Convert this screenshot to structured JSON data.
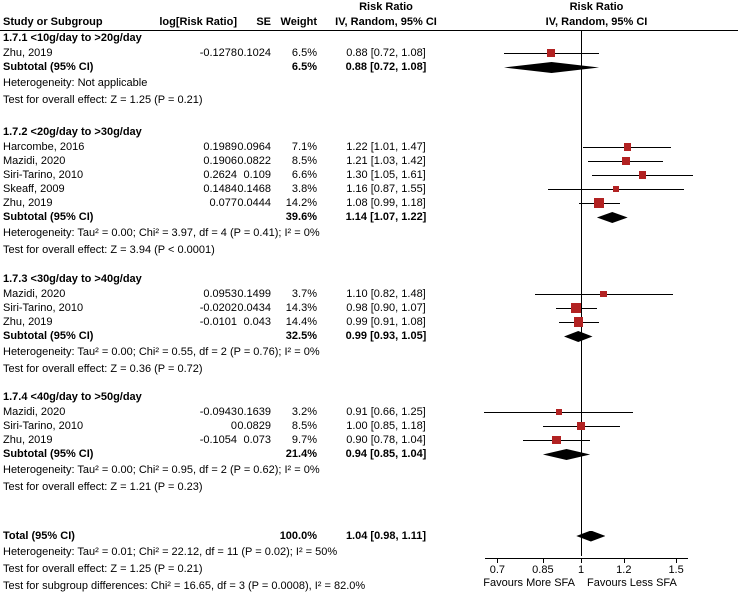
{
  "header": {
    "study": "Study or Subgroup",
    "log_rr": "log[Risk Ratio]",
    "se": "SE",
    "weight": "Weight",
    "effect_title": "Risk Ratio",
    "effect_subtitle": "IV, Random, 95% CI",
    "plot_title": "Risk Ratio",
    "plot_subtitle": "IV, Random, 95% CI"
  },
  "chart_data": {
    "type": "forest",
    "x_scale": "log",
    "marker_color": "#b22222",
    "diamond_color": "#000000",
    "axis": {
      "ticks": [
        0.7,
        0.85,
        1,
        1.2,
        1.5
      ],
      "label_left": "Favours More SFA",
      "label_right": "Favours Less SFA"
    },
    "subgroups": [
      {
        "title": "1.7.1 <10g/day to >20g/day",
        "studies": [
          {
            "study": "Zhu, 2019",
            "log_rr": "-0.1278",
            "se": "0.1024",
            "weight": "6.5%",
            "weight_val": 6.5,
            "ci_text": "0.88 [0.72, 1.08]",
            "rr": 0.88,
            "lo": 0.72,
            "hi": 1.08
          }
        ],
        "subtotal": {
          "label": "Subtotal (95% CI)",
          "weight": "6.5%",
          "ci_text": "0.88 [0.72, 1.08]",
          "rr": 0.88,
          "lo": 0.72,
          "hi": 1.08
        },
        "heterogeneity": "Heterogeneity: Not applicable",
        "overall": "Test for overall effect: Z = 1.25 (P = 0.21)"
      },
      {
        "title": "1.7.2 <20g/day to >30g/day",
        "studies": [
          {
            "study": "Harcombe, 2016",
            "log_rr": "0.1989",
            "se": "0.0964",
            "weight": "7.1%",
            "weight_val": 7.1,
            "ci_text": "1.22 [1.01, 1.47]",
            "rr": 1.22,
            "lo": 1.01,
            "hi": 1.47
          },
          {
            "study": "Mazidi, 2020",
            "log_rr": "0.1906",
            "se": "0.0822",
            "weight": "8.5%",
            "weight_val": 8.5,
            "ci_text": "1.21 [1.03, 1.42]",
            "rr": 1.21,
            "lo": 1.03,
            "hi": 1.42
          },
          {
            "study": "Siri-Tarino, 2010",
            "log_rr": "0.2624",
            "se": "0.109",
            "weight": "6.6%",
            "weight_val": 6.6,
            "ci_text": "1.30 [1.05, 1.61]",
            "rr": 1.3,
            "lo": 1.05,
            "hi": 1.61
          },
          {
            "study": "Skeaff, 2009",
            "log_rr": "0.1484",
            "se": "0.1468",
            "weight": "3.8%",
            "weight_val": 3.8,
            "ci_text": "1.16 [0.87, 1.55]",
            "rr": 1.16,
            "lo": 0.87,
            "hi": 1.55
          },
          {
            "study": "Zhu, 2019",
            "log_rr": "0.077",
            "se": "0.0444",
            "weight": "14.2%",
            "weight_val": 14.2,
            "ci_text": "1.08 [0.99, 1.18]",
            "rr": 1.08,
            "lo": 0.99,
            "hi": 1.18
          }
        ],
        "subtotal": {
          "label": "Subtotal (95% CI)",
          "weight": "39.6%",
          "ci_text": "1.14 [1.07, 1.22]",
          "rr": 1.14,
          "lo": 1.07,
          "hi": 1.22
        },
        "heterogeneity": "Heterogeneity: Tau² = 0.00; Chi² = 3.97, df = 4 (P = 0.41); I² = 0%",
        "overall": "Test for overall effect: Z = 3.94 (P < 0.0001)"
      },
      {
        "title": "1.7.3 <30g/day to >40g/day",
        "studies": [
          {
            "study": "Mazidi, 2020",
            "log_rr": "0.0953",
            "se": "0.1499",
            "weight": "3.7%",
            "weight_val": 3.7,
            "ci_text": "1.10 [0.82, 1.48]",
            "rr": 1.1,
            "lo": 0.82,
            "hi": 1.48
          },
          {
            "study": "Siri-Tarino, 2010",
            "log_rr": "-0.0202",
            "se": "0.0434",
            "weight": "14.3%",
            "weight_val": 14.3,
            "ci_text": "0.98 [0.90, 1.07]",
            "rr": 0.98,
            "lo": 0.9,
            "hi": 1.07
          },
          {
            "study": "Zhu, 2019",
            "log_rr": "-0.0101",
            "se": "0.043",
            "weight": "14.4%",
            "weight_val": 14.4,
            "ci_text": "0.99 [0.91, 1.08]",
            "rr": 0.99,
            "lo": 0.91,
            "hi": 1.08
          }
        ],
        "subtotal": {
          "label": "Subtotal (95% CI)",
          "weight": "32.5%",
          "ci_text": "0.99 [0.93, 1.05]",
          "rr": 0.99,
          "lo": 0.93,
          "hi": 1.05
        },
        "heterogeneity": "Heterogeneity: Tau² = 0.00; Chi² = 0.55, df = 2 (P = 0.76); I² = 0%",
        "overall": "Test for overall effect: Z = 0.36 (P = 0.72)"
      },
      {
        "title": "1.7.4 <40g/day to >50g/day",
        "studies": [
          {
            "study": "Mazidi, 2020",
            "log_rr": "-0.0943",
            "se": "0.1639",
            "weight": "3.2%",
            "weight_val": 3.2,
            "ci_text": "0.91 [0.66, 1.25]",
            "rr": 0.91,
            "lo": 0.66,
            "hi": 1.25
          },
          {
            "study": "Siri-Tarino, 2010",
            "log_rr": "0",
            "se": "0.0829",
            "weight": "8.5%",
            "weight_val": 8.5,
            "ci_text": "1.00 [0.85, 1.18]",
            "rr": 1.0,
            "lo": 0.85,
            "hi": 1.18
          },
          {
            "study": "Zhu, 2019",
            "log_rr": "-0.1054",
            "se": "0.073",
            "weight": "9.7%",
            "weight_val": 9.7,
            "ci_text": "0.90 [0.78, 1.04]",
            "rr": 0.9,
            "lo": 0.78,
            "hi": 1.04
          }
        ],
        "subtotal": {
          "label": "Subtotal (95% CI)",
          "weight": "21.4%",
          "ci_text": "0.94 [0.85, 1.04]",
          "rr": 0.94,
          "lo": 0.85,
          "hi": 1.04
        },
        "heterogeneity": "Heterogeneity: Tau² = 0.00; Chi² = 0.95, df = 2 (P = 0.62); I² = 0%",
        "overall": "Test for overall effect: Z = 1.21 (P = 0.23)"
      }
    ],
    "total": {
      "label": "Total (95% CI)",
      "weight": "100.0%",
      "ci_text": "1.04 [0.98, 1.11]",
      "rr": 1.04,
      "lo": 0.98,
      "hi": 1.11
    },
    "footer": {
      "heterogeneity": "Heterogeneity: Tau² = 0.01; Chi² = 22.12, df = 11 (P = 0.02); I² = 50%",
      "overall": "Test for overall effect: Z = 1.25 (P = 0.21)",
      "subgroup_diff": "Test for subgroup differences: Chi² = 16.65, df = 3 (P = 0.0008), I² = 82.0%"
    }
  }
}
